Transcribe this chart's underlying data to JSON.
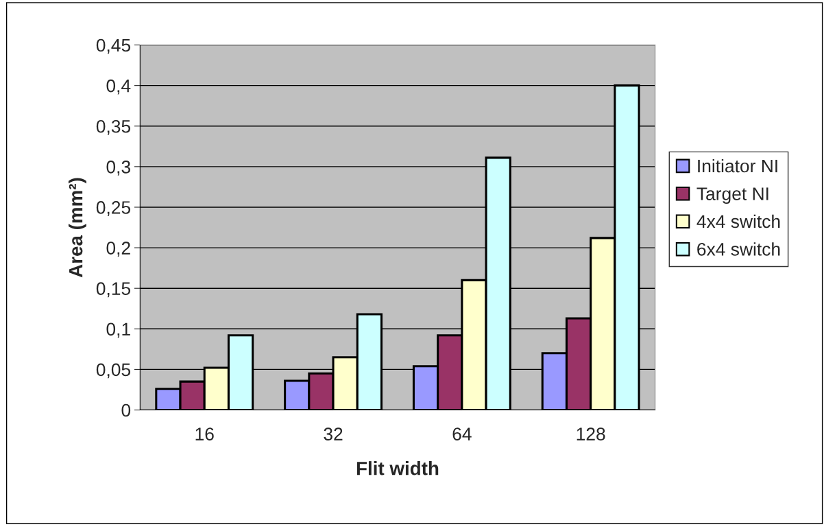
{
  "chart_data": {
    "type": "bar",
    "xlabel": "Flit width",
    "ylabel": "Area (mm²)",
    "categories": [
      "16",
      "32",
      "64",
      "128"
    ],
    "series": [
      {
        "name": "Initiator NI",
        "color": "#9999ff",
        "values": [
          0.026,
          0.036,
          0.054,
          0.07
        ]
      },
      {
        "name": "Target NI",
        "color": "#993366",
        "values": [
          0.035,
          0.045,
          0.092,
          0.113
        ]
      },
      {
        "name": "4x4 switch",
        "color": "#ffffcc",
        "values": [
          0.052,
          0.065,
          0.16,
          0.212
        ]
      },
      {
        "name": "6x4 switch",
        "color": "#ccffff",
        "values": [
          0.092,
          0.118,
          0.311,
          0.4
        ]
      }
    ],
    "ylim": [
      0,
      0.45
    ],
    "yticks": [
      0,
      {
        "value": 0.05,
        "label": "0,05"
      },
      {
        "value": 0.1,
        "label": "0,1"
      },
      {
        "value": 0.15,
        "label": "0,15"
      },
      {
        "value": 0.2,
        "label": "0,2"
      },
      {
        "value": 0.25,
        "label": "0,25"
      },
      {
        "value": 0.3,
        "label": "0,3"
      },
      {
        "value": 0.35,
        "label": "0,35"
      },
      {
        "value": 0.4,
        "label": "0,4"
      },
      {
        "value": 0.45,
        "label": "0,45"
      }
    ],
    "grid": "y",
    "legend": "right"
  }
}
